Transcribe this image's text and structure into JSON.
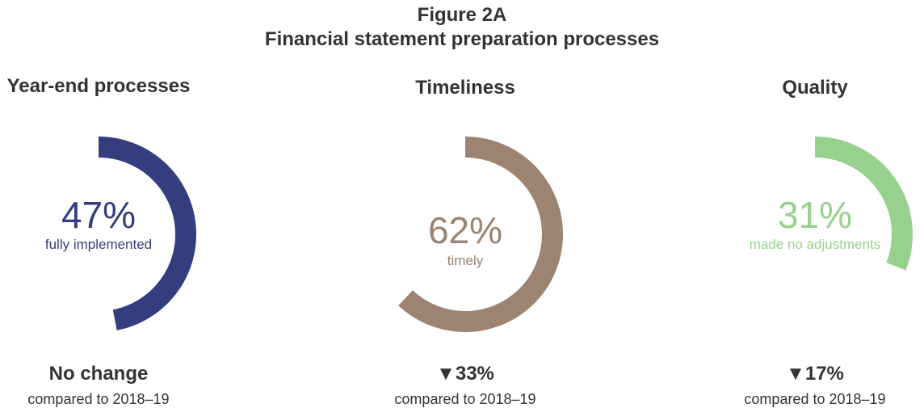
{
  "figure_label": "Figure 2A",
  "title": "Financial statement preparation processes",
  "chart_data": [
    {
      "type": "pie",
      "title": "Year-end processes",
      "value": 47,
      "value_label": "47%",
      "description": "fully implemented",
      "change": "No change",
      "comparison": "compared to 2018–19",
      "color": "#343e7e"
    },
    {
      "type": "pie",
      "title": "Timeliness",
      "value": 62,
      "value_label": "62%",
      "description": "timely",
      "change": "▼33%",
      "comparison": "compared to 2018–19",
      "color": "#9c8372"
    },
    {
      "type": "pie",
      "title": "Quality",
      "value": 31,
      "value_label": "31%",
      "description": "made no adjustments",
      "change": "▼17%",
      "comparison": "compared to 2018–19",
      "color": "#98d18e"
    }
  ]
}
